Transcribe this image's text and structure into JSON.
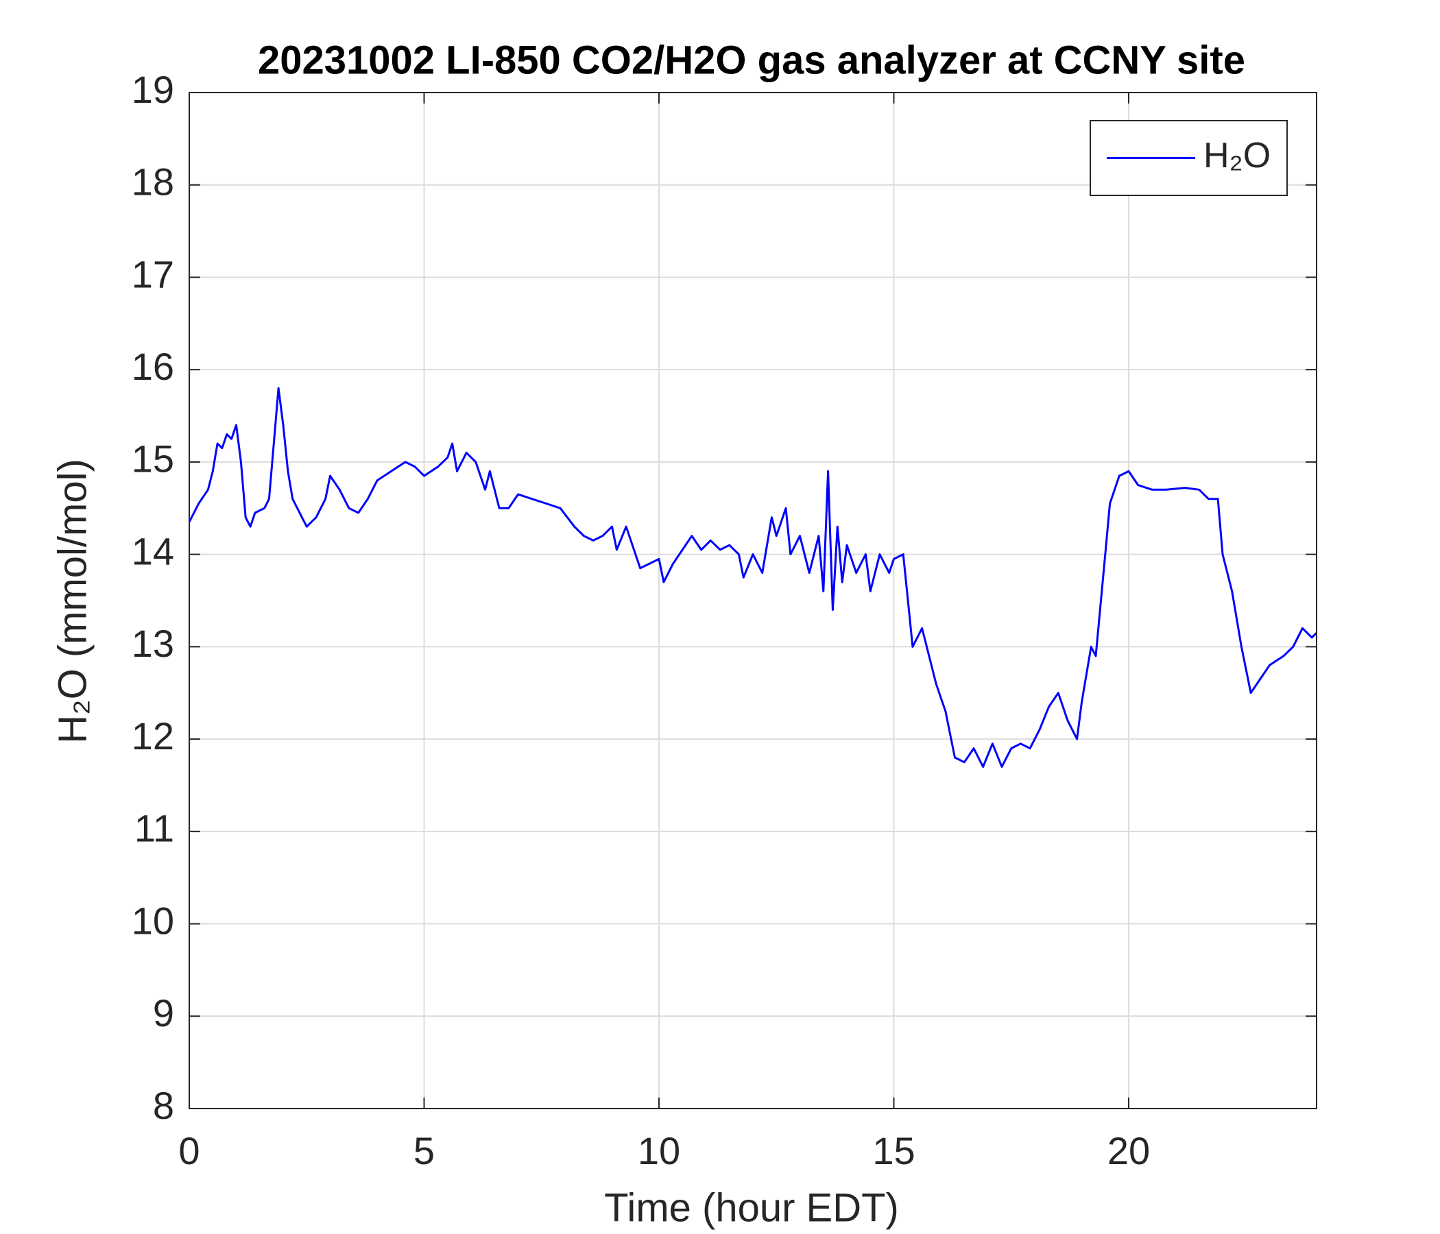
{
  "chart_data": {
    "type": "line",
    "title": "20231002 LI-850 CO2/H2O gas analyzer at CCNY site",
    "x_label": "Time (hour EDT)",
    "y_label": "H₂O (mmol/mol)",
    "xlim": [
      0,
      24
    ],
    "xticks": [
      0,
      5,
      10,
      15,
      20
    ],
    "ylim": [
      8,
      19
    ],
    "yticks": [
      8,
      9,
      10,
      11,
      12,
      13,
      14,
      15,
      16,
      17,
      18,
      19
    ],
    "grid": true,
    "legend": "upper right",
    "x": [
      0,
      0.2,
      0.4,
      0.5,
      0.6,
      0.7,
      0.8,
      0.9,
      1.0,
      1.1,
      1.2,
      1.3,
      1.4,
      1.6,
      1.7,
      1.8,
      1.9,
      2.0,
      2.1,
      2.2,
      2.4,
      2.5,
      2.7,
      2.9,
      3.0,
      3.2,
      3.4,
      3.6,
      3.8,
      4.0,
      4.3,
      4.6,
      4.8,
      5.0,
      5.3,
      5.5,
      5.6,
      5.7,
      5.9,
      6.1,
      6.3,
      6.4,
      6.6,
      6.8,
      7.0,
      7.3,
      7.6,
      7.9,
      8.2,
      8.4,
      8.6,
      8.8,
      9.0,
      9.1,
      9.3,
      9.5,
      9.6,
      9.8,
      10.0,
      10.1,
      10.3,
      10.5,
      10.7,
      10.9,
      11.1,
      11.3,
      11.5,
      11.7,
      11.8,
      12.0,
      12.2,
      12.4,
      12.5,
      12.7,
      12.8,
      13.0,
      13.2,
      13.4,
      13.5,
      13.6,
      13.7,
      13.8,
      13.9,
      14.0,
      14.2,
      14.4,
      14.5,
      14.7,
      14.9,
      15.0,
      15.2,
      15.3,
      15.4,
      15.6,
      15.7,
      15.9,
      16.1,
      16.3,
      16.5,
      16.7,
      16.9,
      17.1,
      17.3,
      17.5,
      17.7,
      17.9,
      18.1,
      18.3,
      18.5,
      18.7,
      18.9,
      19.0,
      19.2,
      19.3,
      19.5,
      19.6,
      19.8,
      20.0,
      20.2,
      20.5,
      20.8,
      21.2,
      21.5,
      21.7,
      21.9,
      22.0,
      22.2,
      22.4,
      22.6,
      22.8,
      23.0,
      23.3,
      23.5,
      23.7,
      23.9,
      24.0
    ],
    "series": [
      {
        "name": "H₂O",
        "color": "#0000ff",
        "values": [
          14.35,
          14.55,
          14.7,
          14.9,
          15.2,
          15.15,
          15.3,
          15.25,
          15.4,
          15.0,
          14.4,
          14.3,
          14.45,
          14.5,
          14.6,
          15.2,
          15.8,
          15.4,
          14.9,
          14.6,
          14.4,
          14.3,
          14.4,
          14.6,
          14.85,
          14.7,
          14.5,
          14.45,
          14.6,
          14.8,
          14.9,
          15.0,
          14.95,
          14.85,
          14.95,
          15.05,
          15.2,
          14.9,
          15.1,
          15.0,
          14.7,
          14.9,
          14.5,
          14.5,
          14.65,
          14.6,
          14.55,
          14.5,
          14.3,
          14.2,
          14.15,
          14.2,
          14.3,
          14.05,
          14.3,
          14.0,
          13.85,
          13.9,
          13.95,
          13.7,
          13.9,
          14.05,
          14.2,
          14.05,
          14.15,
          14.05,
          14.1,
          14.0,
          13.75,
          14.0,
          13.8,
          14.4,
          14.2,
          14.5,
          14.0,
          14.2,
          13.8,
          14.2,
          13.6,
          14.9,
          13.4,
          14.3,
          13.7,
          14.1,
          13.8,
          14.0,
          13.6,
          14.0,
          13.8,
          13.95,
          14.0,
          13.5,
          13.0,
          13.2,
          13.0,
          12.6,
          12.3,
          11.8,
          11.75,
          11.9,
          11.7,
          11.95,
          11.7,
          11.9,
          11.95,
          11.9,
          12.1,
          12.35,
          12.5,
          12.2,
          12.0,
          12.4,
          13.0,
          12.9,
          14.0,
          14.55,
          14.85,
          14.9,
          14.75,
          14.7,
          14.7,
          14.72,
          14.7,
          14.6,
          14.6,
          14.0,
          13.6,
          13.0,
          12.5,
          12.65,
          12.8,
          12.9,
          13.0,
          13.2,
          13.1,
          13.15
        ]
      }
    ]
  }
}
